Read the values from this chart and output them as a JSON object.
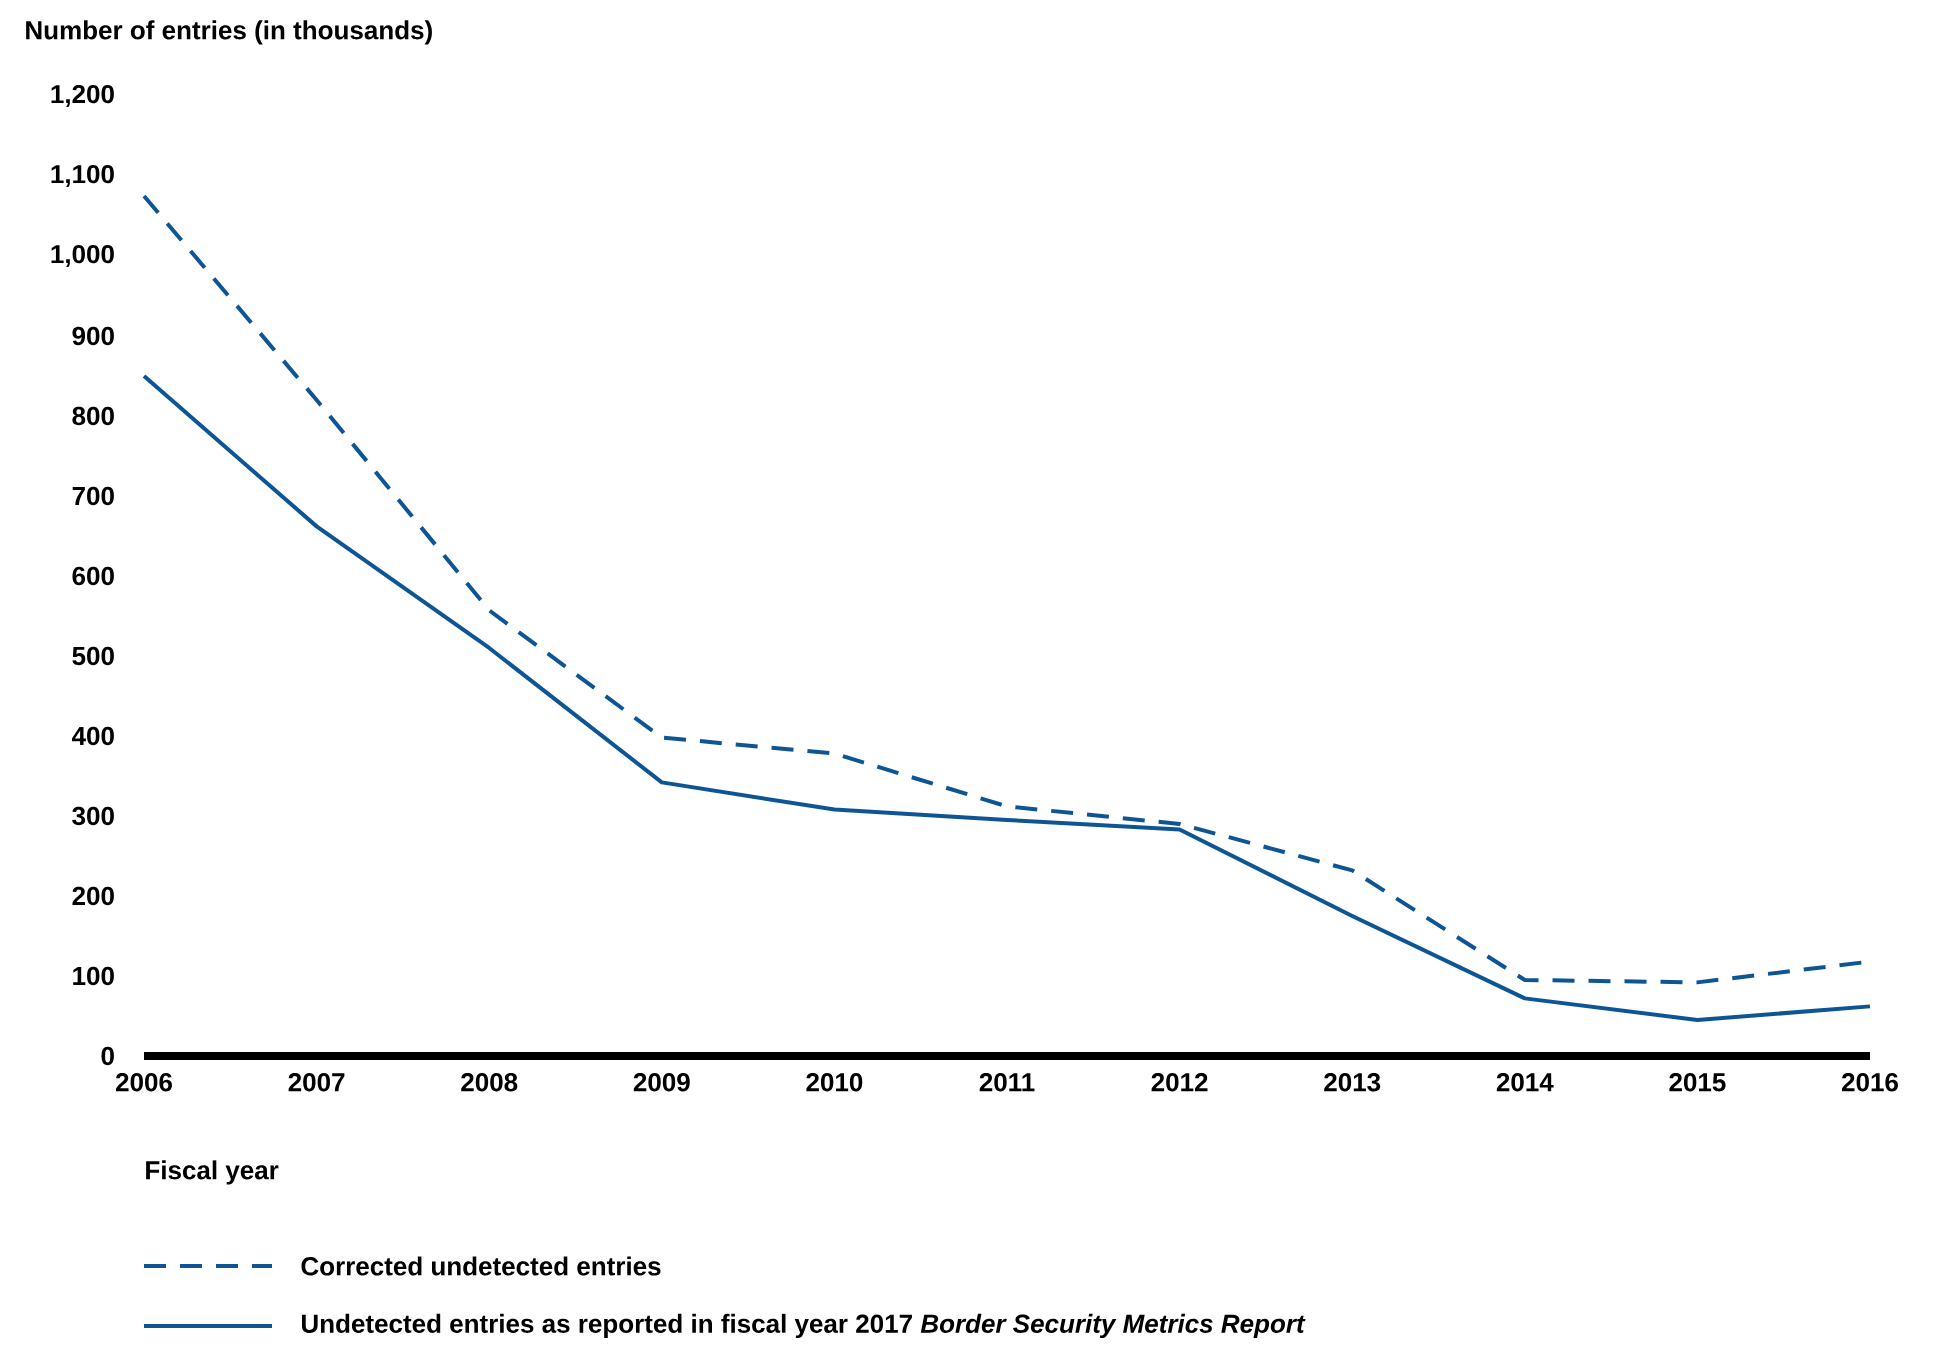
{
  "chart_data": {
    "type": "line",
    "ylabel": "Number of entries (in thousands)",
    "xlabel": "Fiscal year",
    "x": [
      2006,
      2007,
      2008,
      2009,
      2010,
      2011,
      2012,
      2013,
      2014,
      2015,
      2016
    ],
    "xlim": [
      2006,
      2016
    ],
    "xticks": [
      2006,
      2007,
      2008,
      2009,
      2010,
      2011,
      2012,
      2013,
      2014,
      2015,
      2016
    ],
    "ylim": [
      0,
      1200
    ],
    "yticks": [
      0,
      100,
      200,
      300,
      400,
      500,
      600,
      700,
      800,
      900,
      {
        "value": 1000,
        "label": "1,000"
      },
      {
        "value": 1100,
        "label": "1,100"
      },
      {
        "value": 1200,
        "label": "1,200"
      }
    ],
    "legend": "bottom",
    "series": [
      {
        "name": "Corrected undetected entries",
        "color": "#0d5594",
        "line_style": "dashed",
        "values": [
          1075,
          820,
          557,
          398,
          378,
          312,
          290,
          232,
          95,
          92,
          118
        ]
      },
      {
        "name": "Undetected entries as reported in fiscal year 2017 *Border Security Metrics Report*",
        "color": "#0d5594",
        "line_style": "solid",
        "values": [
          850,
          662,
          510,
          342,
          308,
          295,
          283,
          175,
          72,
          45,
          62
        ]
      }
    ]
  }
}
